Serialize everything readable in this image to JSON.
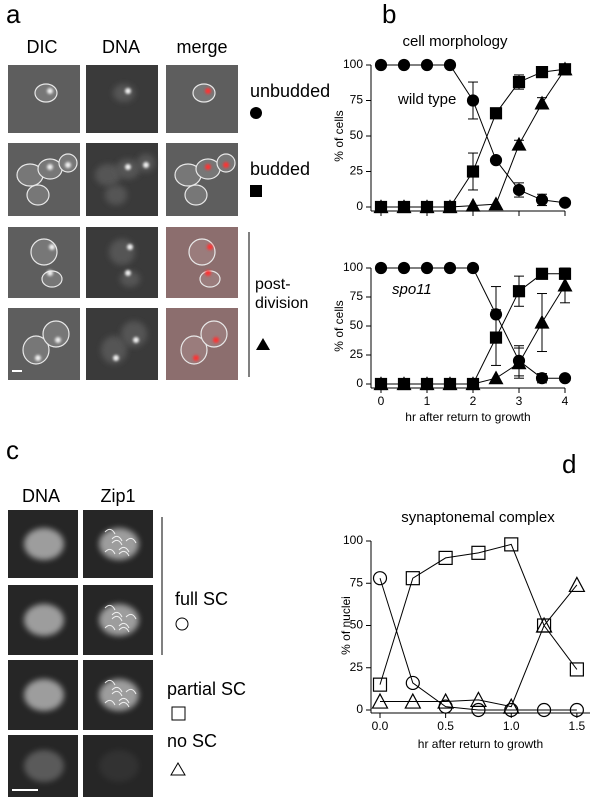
{
  "panels": {
    "a": {
      "label": "a",
      "columns": [
        "DIC",
        "DNA",
        "merge"
      ]
    },
    "b": {
      "label": "b"
    },
    "c": {
      "label": "c",
      "columns": [
        "DNA",
        "Zip1"
      ]
    },
    "d": {
      "label": "d"
    }
  },
  "chart_data": [
    {
      "type": "line",
      "title": "cell morphology",
      "annotation": "wild type",
      "ylabel": "% of cells",
      "x": [
        0,
        0.5,
        1,
        1.5,
        2,
        2.5,
        3,
        3.5,
        4
      ],
      "xlim": [
        0,
        4
      ],
      "xticks": [
        0,
        1,
        2,
        3,
        4
      ],
      "xtick_labels": false,
      "ylim": [
        0,
        100
      ],
      "yticks": [
        0,
        25,
        50,
        75,
        100
      ],
      "series": [
        {
          "name": "unbudded",
          "color": "#000000",
          "marker": "circle",
          "filled": true,
          "values": [
            100,
            100,
            100,
            100,
            75,
            33,
            12,
            5,
            3
          ],
          "errors": [
            null,
            null,
            null,
            null,
            13,
            null,
            5,
            4,
            null
          ]
        },
        {
          "name": "budded",
          "color": "#000000",
          "marker": "square",
          "filled": true,
          "values": [
            0,
            0,
            0,
            0,
            25,
            66,
            88,
            95,
            97
          ],
          "errors": [
            null,
            null,
            null,
            null,
            13,
            3,
            5,
            3,
            2
          ]
        },
        {
          "name": "post-division",
          "color": "#000000",
          "marker": "triangle",
          "filled": true,
          "values": [
            0,
            0,
            0,
            0,
            1,
            2,
            44,
            73,
            97
          ],
          "errors": [
            null,
            null,
            null,
            null,
            null,
            null,
            3,
            4,
            2
          ]
        }
      ]
    },
    {
      "type": "line",
      "annotation": "spo11",
      "ylabel": "% of cells",
      "xlabel": "hr after return to growth",
      "x": [
        0,
        0.5,
        1,
        1.5,
        2,
        2.5,
        3,
        3.5,
        4
      ],
      "xlim": [
        0,
        4
      ],
      "xticks": [
        0,
        1,
        2,
        3,
        4
      ],
      "ylim": [
        0,
        100
      ],
      "yticks": [
        0,
        25,
        50,
        75,
        100
      ],
      "series": [
        {
          "color": "#000000",
          "marker": "circle",
          "filled": true,
          "values": [
            100,
            100,
            100,
            100,
            100,
            60,
            20,
            5,
            5
          ],
          "errors": [
            null,
            null,
            null,
            null,
            null,
            24,
            13,
            4,
            null
          ]
        },
        {
          "color": "#000000",
          "marker": "square",
          "filled": true,
          "values": [
            0,
            0,
            0,
            0,
            0,
            40,
            80,
            95,
            95
          ],
          "errors": [
            null,
            null,
            null,
            null,
            null,
            24,
            13,
            3,
            3
          ]
        },
        {
          "color": "#000000",
          "marker": "triangle",
          "filled": true,
          "values": [
            0,
            0,
            0,
            0,
            0,
            5,
            18,
            53,
            85
          ],
          "errors": [
            null,
            null,
            null,
            null,
            null,
            null,
            13,
            25,
            15
          ]
        }
      ]
    },
    {
      "type": "line",
      "title": "synaptonemal complex",
      "ylabel": "% of nuclei",
      "xlabel": "hr after return to growth",
      "x": [
        0,
        0.25,
        0.5,
        0.75,
        1,
        1.25,
        1.5
      ],
      "xlim": [
        0,
        1.6
      ],
      "xticks": [
        {
          "value": 0,
          "label": "0.0"
        },
        0.5,
        {
          "value": 1,
          "label": "1.0"
        },
        1.5
      ],
      "ylim": [
        0,
        100
      ],
      "yticks": [
        0,
        25,
        50,
        75,
        100
      ],
      "series": [
        {
          "name": "full SC",
          "color": "#000000",
          "marker": "circle",
          "filled": false,
          "values": [
            78,
            16,
            2,
            0,
            0,
            0,
            0
          ]
        },
        {
          "name": "partial SC",
          "color": "#000000",
          "marker": "square",
          "filled": false,
          "values": [
            15,
            78,
            90,
            93,
            98,
            50,
            24
          ]
        },
        {
          "name": "no SC",
          "color": "#000000",
          "marker": "triangle",
          "filled": false,
          "values": [
            5,
            5,
            5,
            6,
            2,
            50,
            74
          ]
        }
      ]
    }
  ]
}
